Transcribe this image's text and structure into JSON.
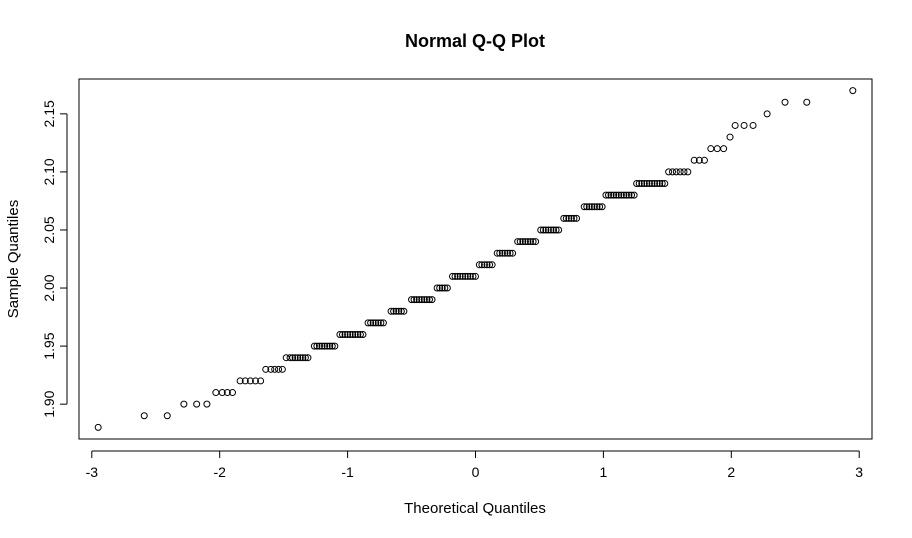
{
  "chart_data": {
    "type": "scatter",
    "title": "Normal Q-Q Plot",
    "xlabel": "Theoretical Quantiles",
    "ylabel": "Sample Quantiles",
    "xlim": [
      -3.1,
      3.1
    ],
    "ylim": [
      1.87,
      2.18
    ],
    "x_ticks": [
      "-3",
      "-2",
      "-1",
      "0",
      "1",
      "2",
      "3"
    ],
    "y_ticks": [
      "1.90",
      "1.95",
      "2.00",
      "2.05",
      "2.10",
      "2.15"
    ],
    "grid": false,
    "marker": "open-circle",
    "x": [
      -2.95,
      -2.59,
      -2.41,
      -2.28,
      -2.18,
      -2.1,
      -2.03,
      -1.98,
      -1.94,
      -1.9,
      -1.84,
      -1.8,
      -1.76,
      -1.72,
      -1.68,
      -1.64,
      -1.6,
      -1.57,
      -1.54,
      -1.51,
      -1.48,
      -1.45,
      -1.43,
      -1.41,
      -1.39,
      -1.37,
      -1.35,
      -1.33,
      -1.31,
      -1.26,
      -1.24,
      -1.22,
      -1.2,
      -1.18,
      -1.16,
      -1.14,
      -1.12,
      -1.1,
      -1.06,
      -1.04,
      -1.02,
      -1.0,
      -0.98,
      -0.96,
      -0.94,
      -0.92,
      -0.9,
      -0.88,
      -0.84,
      -0.82,
      -0.8,
      -0.78,
      -0.76,
      -0.74,
      -0.72,
      -0.66,
      -0.64,
      -0.62,
      -0.6,
      -0.58,
      -0.56,
      -0.5,
      -0.48,
      -0.46,
      -0.44,
      -0.42,
      -0.4,
      -0.38,
      -0.36,
      -0.34,
      -0.3,
      -0.28,
      -0.26,
      -0.24,
      -0.22,
      -0.18,
      -0.16,
      -0.14,
      -0.12,
      -0.1,
      -0.08,
      -0.06,
      -0.04,
      -0.02,
      0.0,
      0.03,
      0.05,
      0.07,
      0.09,
      0.11,
      0.13,
      0.17,
      0.19,
      0.21,
      0.23,
      0.25,
      0.27,
      0.29,
      0.33,
      0.35,
      0.37,
      0.39,
      0.41,
      0.43,
      0.45,
      0.47,
      0.51,
      0.53,
      0.55,
      0.57,
      0.59,
      0.61,
      0.63,
      0.65,
      0.69,
      0.71,
      0.73,
      0.75,
      0.77,
      0.79,
      0.85,
      0.87,
      0.89,
      0.91,
      0.93,
      0.95,
      0.97,
      0.99,
      1.02,
      1.04,
      1.06,
      1.08,
      1.1,
      1.12,
      1.14,
      1.16,
      1.18,
      1.2,
      1.22,
      1.24,
      1.26,
      1.28,
      1.3,
      1.32,
      1.34,
      1.36,
      1.38,
      1.4,
      1.42,
      1.44,
      1.46,
      1.48,
      1.51,
      1.54,
      1.57,
      1.6,
      1.63,
      1.66,
      1.71,
      1.75,
      1.79,
      1.84,
      1.89,
      1.94,
      1.99,
      2.03,
      2.1,
      2.17,
      2.28,
      2.42,
      2.59,
      2.95
    ],
    "y": [
      1.88,
      1.89,
      1.89,
      1.9,
      1.9,
      1.9,
      1.91,
      1.91,
      1.91,
      1.91,
      1.92,
      1.92,
      1.92,
      1.92,
      1.92,
      1.93,
      1.93,
      1.93,
      1.93,
      1.93,
      1.94,
      1.94,
      1.94,
      1.94,
      1.94,
      1.94,
      1.94,
      1.94,
      1.94,
      1.95,
      1.95,
      1.95,
      1.95,
      1.95,
      1.95,
      1.95,
      1.95,
      1.95,
      1.96,
      1.96,
      1.96,
      1.96,
      1.96,
      1.96,
      1.96,
      1.96,
      1.96,
      1.96,
      1.97,
      1.97,
      1.97,
      1.97,
      1.97,
      1.97,
      1.97,
      1.98,
      1.98,
      1.98,
      1.98,
      1.98,
      1.98,
      1.99,
      1.99,
      1.99,
      1.99,
      1.99,
      1.99,
      1.99,
      1.99,
      1.99,
      2.0,
      2.0,
      2.0,
      2.0,
      2.0,
      2.01,
      2.01,
      2.01,
      2.01,
      2.01,
      2.01,
      2.01,
      2.01,
      2.01,
      2.01,
      2.02,
      2.02,
      2.02,
      2.02,
      2.02,
      2.02,
      2.03,
      2.03,
      2.03,
      2.03,
      2.03,
      2.03,
      2.03,
      2.04,
      2.04,
      2.04,
      2.04,
      2.04,
      2.04,
      2.04,
      2.04,
      2.05,
      2.05,
      2.05,
      2.05,
      2.05,
      2.05,
      2.05,
      2.05,
      2.06,
      2.06,
      2.06,
      2.06,
      2.06,
      2.06,
      2.07,
      2.07,
      2.07,
      2.07,
      2.07,
      2.07,
      2.07,
      2.07,
      2.08,
      2.08,
      2.08,
      2.08,
      2.08,
      2.08,
      2.08,
      2.08,
      2.08,
      2.08,
      2.08,
      2.08,
      2.09,
      2.09,
      2.09,
      2.09,
      2.09,
      2.09,
      2.09,
      2.09,
      2.09,
      2.09,
      2.09,
      2.09,
      2.1,
      2.1,
      2.1,
      2.1,
      2.1,
      2.1,
      2.11,
      2.11,
      2.11,
      2.12,
      2.12,
      2.12,
      2.13,
      2.14,
      2.14,
      2.14,
      2.15,
      2.16,
      2.16,
      2.17
    ]
  }
}
